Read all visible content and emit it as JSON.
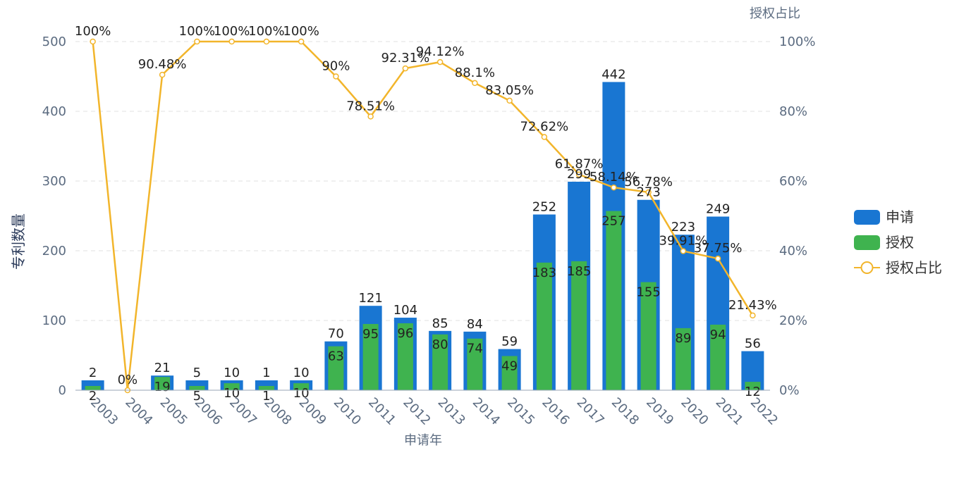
{
  "chart_data": {
    "type": "bar",
    "categories": [
      "2003",
      "2004",
      "2005",
      "2006",
      "2007",
      "2008",
      "2009",
      "2010",
      "2011",
      "2012",
      "2013",
      "2014",
      "2015",
      "2016",
      "2017",
      "2018",
      "2019",
      "2020",
      "2021",
      "2022"
    ],
    "series": [
      {
        "name": "申请",
        "type": "bar",
        "color": "#1976d2",
        "values": [
          2,
          0,
          21,
          5,
          10,
          1,
          10,
          70,
          121,
          104,
          85,
          84,
          59,
          252,
          299,
          442,
          273,
          223,
          249,
          56
        ]
      },
      {
        "name": "授权",
        "type": "bar",
        "color": "#3fb34f",
        "values": [
          2,
          0,
          19,
          5,
          10,
          1,
          10,
          63,
          95,
          96,
          80,
          74,
          49,
          183,
          185,
          257,
          155,
          89,
          94,
          12
        ]
      },
      {
        "name": "授权占比",
        "type": "line",
        "color": "#f2b52b",
        "values": [
          100,
          0,
          90.48,
          100,
          100,
          100,
          100,
          90,
          78.51,
          92.31,
          94.12,
          88.1,
          83.05,
          72.62,
          61.87,
          58.14,
          56.78,
          39.91,
          37.75,
          21.43
        ],
        "labels": [
          "100%",
          "0%",
          "90.48%",
          "100%",
          "100%",
          "100%",
          "100%",
          "90%",
          "78.51%",
          "92.31%",
          "94.12%",
          "88.1%",
          "83.05%",
          "72.62%",
          "61.87%",
          "58.14%",
          "56.78%",
          "39.91%",
          "37.75%",
          "21.43%"
        ]
      }
    ],
    "xlabel": "申请年",
    "ylabel": "专利数量",
    "y2label": "授权占比",
    "ylim": [
      0,
      500
    ],
    "y2lim": [
      0,
      100
    ],
    "yticks": [
      "0",
      "100",
      "200",
      "300",
      "400",
      "500"
    ],
    "y2ticks": [
      "0%",
      "20%",
      "40%",
      "60%",
      "80%",
      "100%"
    ],
    "grid": true,
    "legend_position": "right",
    "legend": [
      "申请",
      "授权",
      "授权占比"
    ]
  }
}
